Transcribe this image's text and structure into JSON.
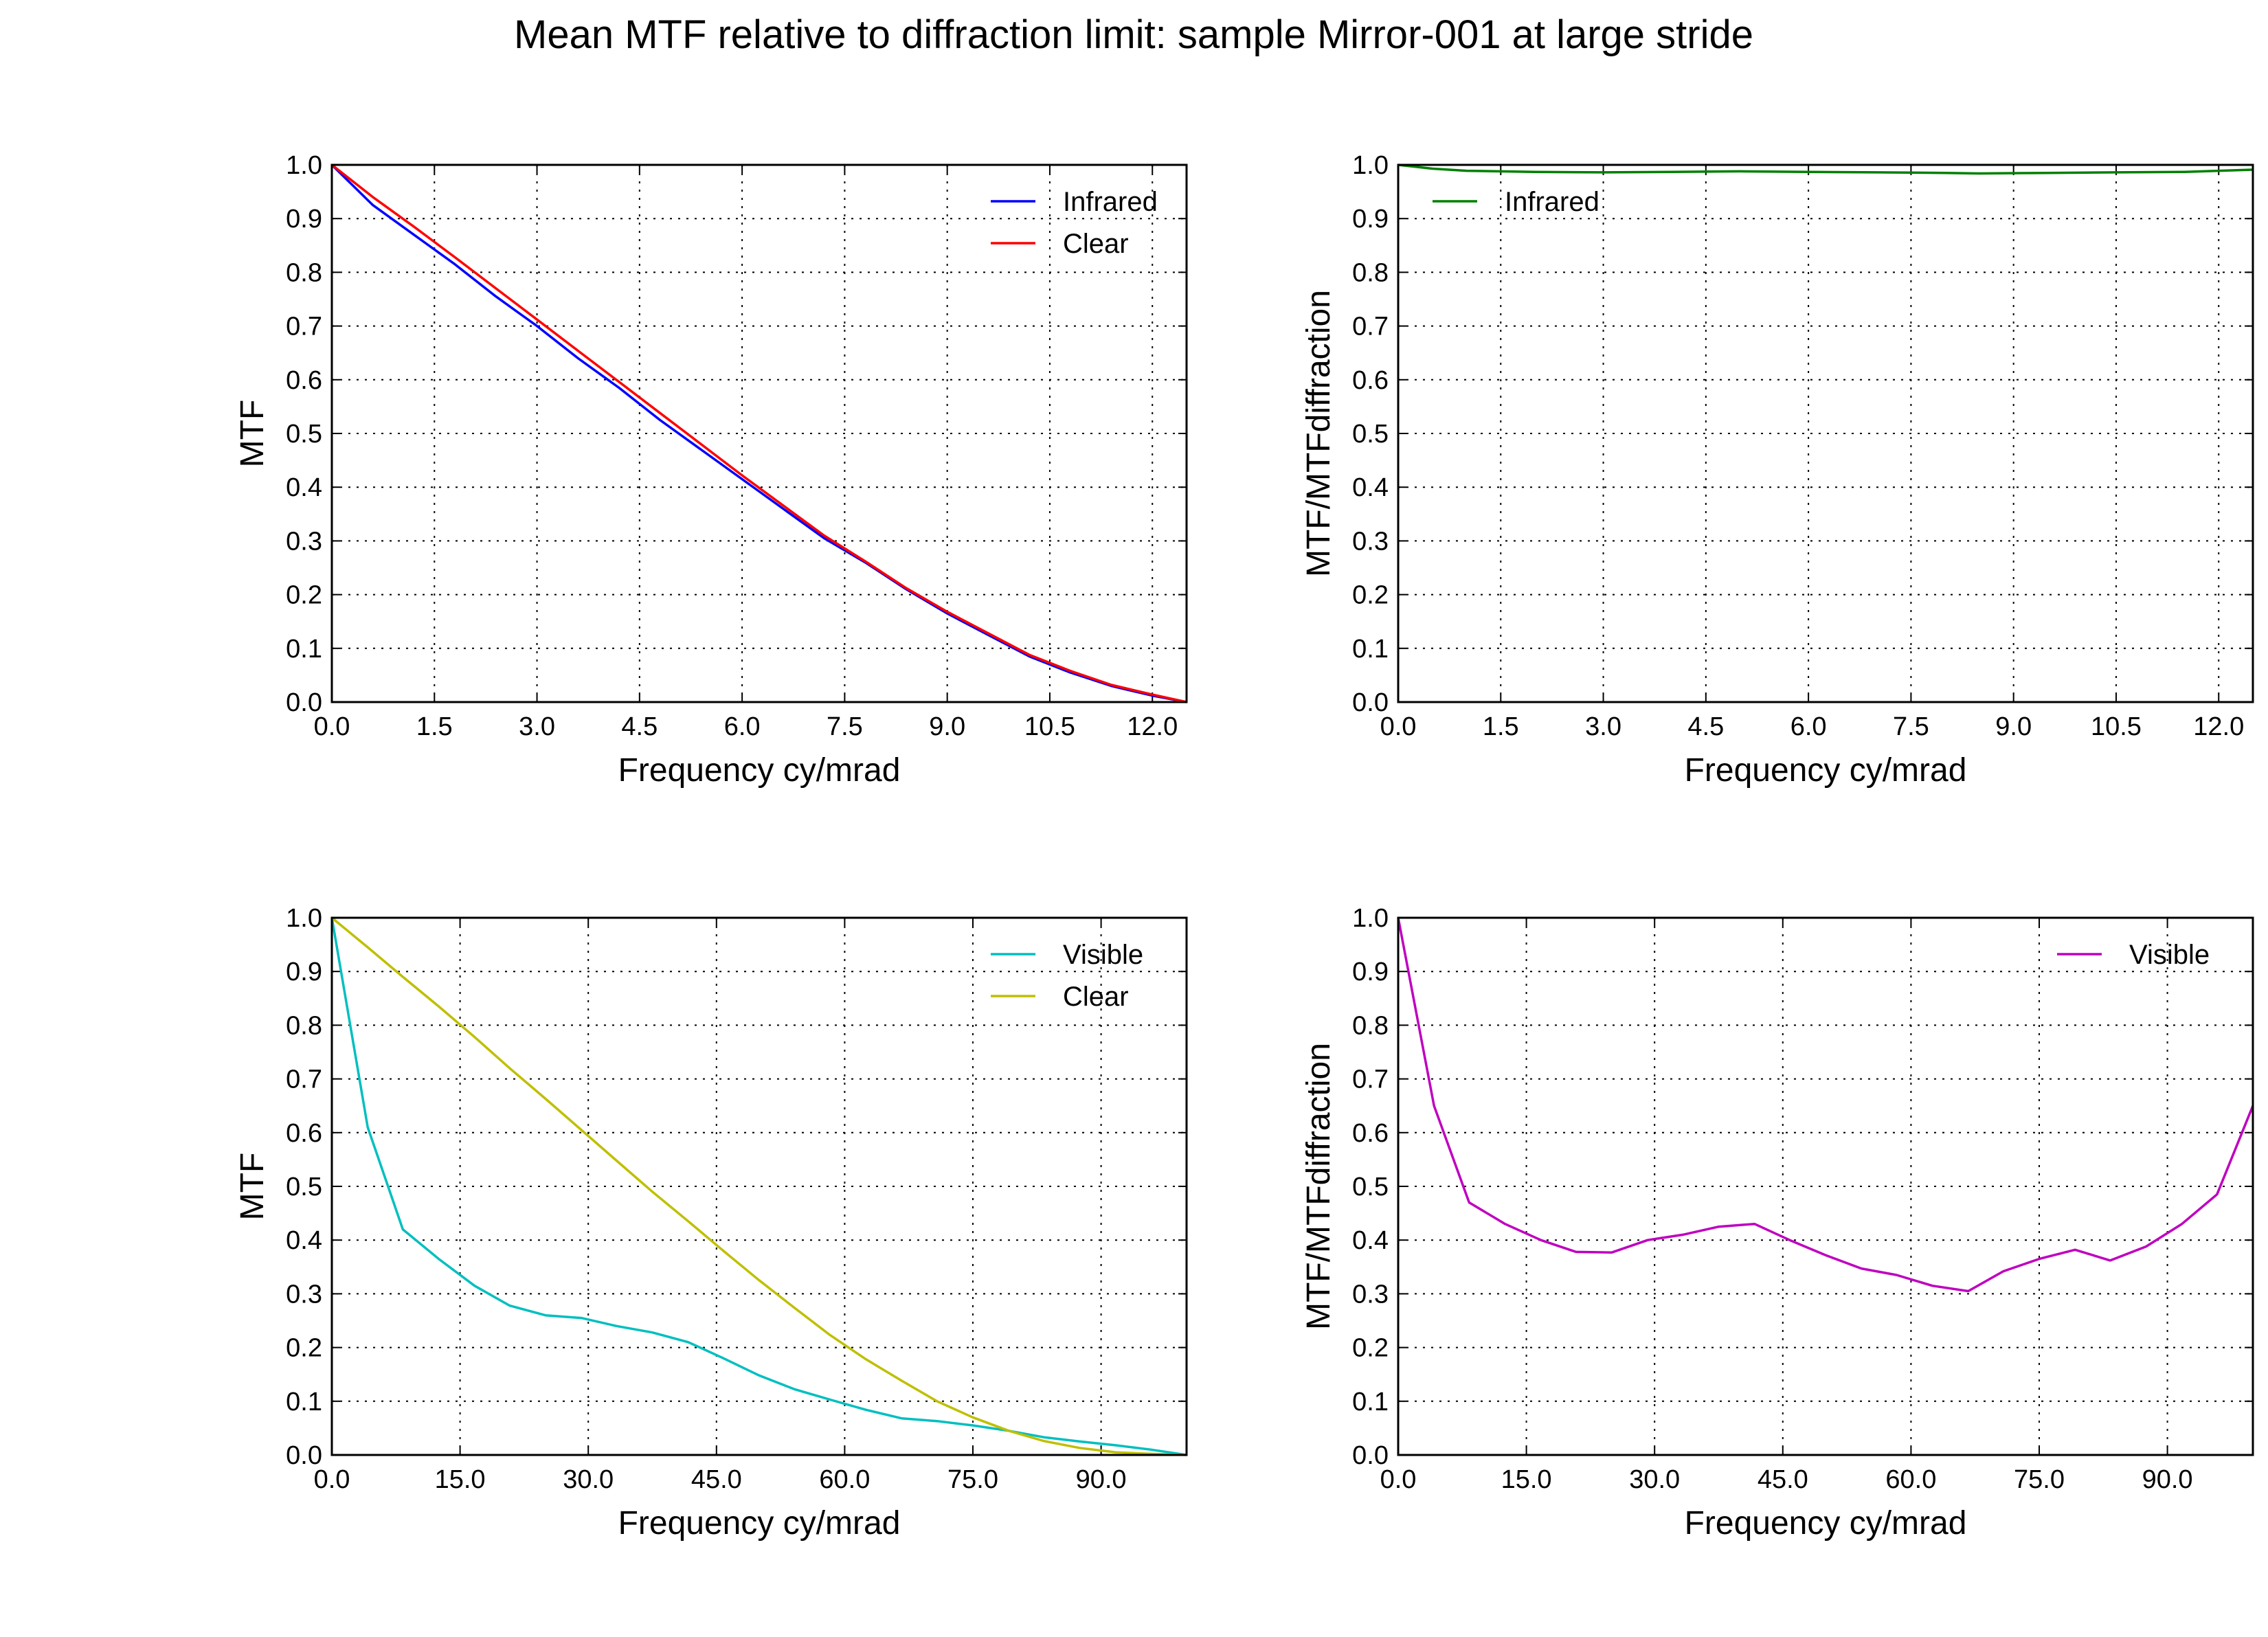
{
  "figure_title": "Mean MTF relative to diffraction limit: sample Mirror-001 at large stride",
  "chart_data": [
    {
      "type": "line",
      "xlabel": "Frequency cy/mrad",
      "ylabel": "MTF",
      "xlim": [
        0,
        12.5
      ],
      "ylim": [
        0,
        1.0
      ],
      "xticks": [
        "0.0",
        "1.5",
        "3.0",
        "4.5",
        "6.0",
        "7.5",
        "9.0",
        "10.5",
        "12.0"
      ],
      "yticks": [
        "0.0",
        "0.1",
        "0.2",
        "0.3",
        "0.4",
        "0.5",
        "0.6",
        "0.7",
        "0.8",
        "0.9",
        "1.0"
      ],
      "grid": true,
      "legend_position": "top-right",
      "series": [
        {
          "name": "Infrared",
          "color": "#0000ff",
          "x": [
            0,
            0.6,
            1.2,
            1.8,
            2.4,
            3.0,
            3.6,
            4.2,
            4.8,
            5.4,
            6.0,
            6.6,
            7.2,
            7.8,
            8.4,
            9.0,
            9.6,
            10.2,
            10.8,
            11.4,
            12.0,
            12.5
          ],
          "y": [
            1.0,
            0.925,
            0.87,
            0.815,
            0.755,
            0.7,
            0.64,
            0.585,
            0.525,
            0.47,
            0.415,
            0.36,
            0.305,
            0.26,
            0.21,
            0.165,
            0.125,
            0.085,
            0.055,
            0.03,
            0.012,
            0.0
          ]
        },
        {
          "name": "Clear",
          "color": "#ff0000",
          "x": [
            0,
            0.6,
            1.2,
            1.8,
            2.4,
            3.0,
            3.6,
            4.2,
            4.8,
            5.4,
            6.0,
            6.6,
            7.2,
            7.8,
            8.4,
            9.0,
            9.6,
            10.2,
            10.8,
            11.4,
            12.0,
            12.5
          ],
          "y": [
            1.0,
            0.94,
            0.885,
            0.828,
            0.77,
            0.712,
            0.654,
            0.596,
            0.538,
            0.48,
            0.422,
            0.366,
            0.31,
            0.262,
            0.212,
            0.168,
            0.128,
            0.088,
            0.058,
            0.032,
            0.014,
            0.0
          ]
        }
      ]
    },
    {
      "type": "line",
      "xlabel": "Frequency cy/mrad",
      "ylabel": "MTF/MTFdiffraction",
      "xlim": [
        0,
        12.5
      ],
      "ylim": [
        0,
        1.0
      ],
      "xticks": [
        "0.0",
        "1.5",
        "3.0",
        "4.5",
        "6.0",
        "7.5",
        "9.0",
        "10.5",
        "12.0"
      ],
      "yticks": [
        "0.0",
        "0.1",
        "0.2",
        "0.3",
        "0.4",
        "0.5",
        "0.6",
        "0.7",
        "0.8",
        "0.9",
        "1.0"
      ],
      "grid": true,
      "legend_position": "top-left",
      "series": [
        {
          "name": "Infrared",
          "color": "#008000",
          "x": [
            0,
            0.5,
            1.0,
            2.0,
            3.0,
            4.0,
            5.0,
            6.0,
            7.0,
            8.0,
            8.5,
            9.5,
            10.5,
            11.5,
            12.5
          ],
          "y": [
            1.0,
            0.993,
            0.989,
            0.987,
            0.986,
            0.987,
            0.988,
            0.987,
            0.986,
            0.985,
            0.984,
            0.985,
            0.986,
            0.987,
            0.991
          ]
        }
      ]
    },
    {
      "type": "line",
      "xlabel": "Frequency cy/mrad",
      "ylabel": "MTF",
      "xlim": [
        0,
        100
      ],
      "ylim": [
        0,
        1.0
      ],
      "xticks": [
        "0.0",
        "15.0",
        "30.0",
        "45.0",
        "60.0",
        "75.0",
        "90.0"
      ],
      "yticks": [
        "0.0",
        "0.1",
        "0.2",
        "0.3",
        "0.4",
        "0.5",
        "0.6",
        "0.7",
        "0.8",
        "0.9",
        "1.0"
      ],
      "grid": true,
      "legend_position": "top-right",
      "series": [
        {
          "name": "Visible",
          "color": "#00bfbf",
          "x": [
            0,
            4.2,
            8.3,
            12.5,
            16.7,
            20.8,
            25.0,
            29.2,
            33.3,
            37.5,
            41.7,
            45.8,
            50.0,
            54.2,
            58.3,
            62.5,
            66.7,
            70.8,
            75.0,
            79.2,
            83.3,
            87.5,
            91.7,
            95.8,
            100
          ],
          "y": [
            1.0,
            0.61,
            0.42,
            0.365,
            0.315,
            0.278,
            0.26,
            0.255,
            0.24,
            0.228,
            0.21,
            0.18,
            0.148,
            0.122,
            0.103,
            0.084,
            0.068,
            0.063,
            0.055,
            0.045,
            0.033,
            0.025,
            0.018,
            0.01,
            0.0
          ]
        },
        {
          "name": "Clear",
          "color": "#bfbf00",
          "x": [
            0,
            4.2,
            8.3,
            12.5,
            16.7,
            20.8,
            25.0,
            29.2,
            33.3,
            37.5,
            41.7,
            45.8,
            50.0,
            54.2,
            58.3,
            62.5,
            66.7,
            70.8,
            75.0,
            79.2,
            83.3,
            87.5,
            91.7,
            95.8,
            100
          ],
          "y": [
            1.0,
            0.945,
            0.89,
            0.835,
            0.778,
            0.72,
            0.663,
            0.605,
            0.548,
            0.49,
            0.435,
            0.38,
            0.325,
            0.273,
            0.223,
            0.178,
            0.138,
            0.1,
            0.07,
            0.045,
            0.026,
            0.013,
            0.005,
            0.002,
            0.0
          ]
        }
      ]
    },
    {
      "type": "line",
      "xlabel": "Frequency cy/mrad",
      "ylabel": "MTF/MTFdiffraction",
      "xlim": [
        0,
        100
      ],
      "ylim": [
        0,
        1.0
      ],
      "xticks": [
        "0.0",
        "15.0",
        "30.0",
        "45.0",
        "60.0",
        "75.0",
        "90.0"
      ],
      "yticks": [
        "0.0",
        "0.1",
        "0.2",
        "0.3",
        "0.4",
        "0.5",
        "0.6",
        "0.7",
        "0.8",
        "0.9",
        "1.0"
      ],
      "grid": true,
      "legend_position": "top-right",
      "series": [
        {
          "name": "Visible",
          "color": "#bf00bf",
          "x": [
            0,
            4.2,
            8.3,
            12.5,
            16.7,
            20.8,
            25.0,
            29.2,
            33.3,
            37.5,
            41.7,
            45.8,
            50.0,
            54.2,
            58.3,
            62.5,
            66.7,
            70.8,
            75.0,
            79.2,
            83.3,
            87.5,
            91.7,
            95.8,
            100
          ],
          "y": [
            1.0,
            0.65,
            0.47,
            0.43,
            0.4,
            0.378,
            0.377,
            0.4,
            0.41,
            0.425,
            0.43,
            0.4,
            0.372,
            0.347,
            0.335,
            0.315,
            0.305,
            0.342,
            0.365,
            0.382,
            0.362,
            0.388,
            0.43,
            0.485,
            0.65
          ]
        }
      ]
    }
  ]
}
